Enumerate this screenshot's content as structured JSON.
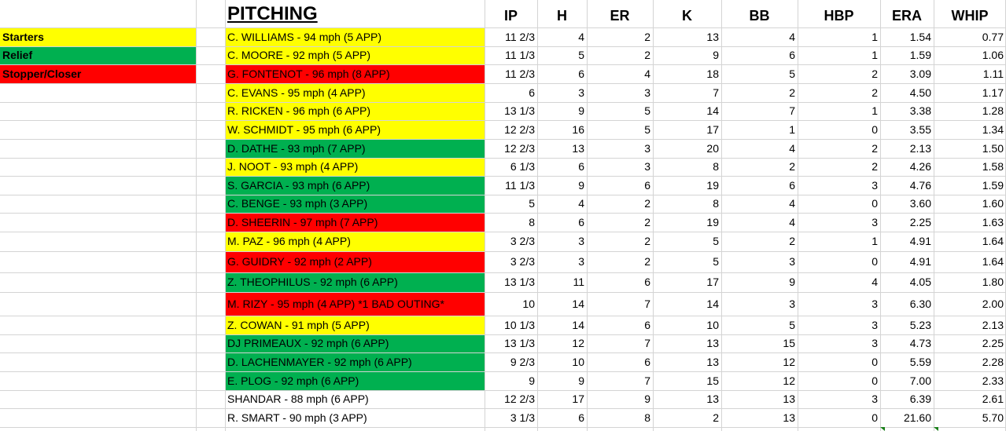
{
  "title": "PITCHING",
  "columns": [
    "IP",
    "H",
    "ER",
    "K",
    "BB",
    "HBP",
    "ERA",
    "WHIP"
  ],
  "legend": [
    {
      "label": "Starters",
      "color": "#ffff00"
    },
    {
      "label": "Relief",
      "color": "#00b050"
    },
    {
      "label": "Stopper/Closer",
      "color": "#ff0000"
    }
  ],
  "colors": {
    "starter": "#ffff00",
    "relief": "#00b050",
    "closer": "#ff0000",
    "none": "#ffffff"
  },
  "rows": [
    {
      "name": "C. WILLIAMS - 94 mph (5 APP)",
      "role": "starter",
      "ip": "11 2/3",
      "h": "4",
      "er": "2",
      "k": "13",
      "bb": "4",
      "hbp": "1",
      "era": "1.54",
      "whip": "0.77"
    },
    {
      "name": "C. MOORE - 92 mph (5 APP)",
      "role": "starter",
      "ip": "11 1/3",
      "h": "5",
      "er": "2",
      "k": "9",
      "bb": "6",
      "hbp": "1",
      "era": "1.59",
      "whip": "1.06"
    },
    {
      "name": "G. FONTENOT - 96 mph (8 APP)",
      "role": "closer",
      "ip": "11 2/3",
      "h": "6",
      "er": "4",
      "k": "18",
      "bb": "5",
      "hbp": "2",
      "era": "3.09",
      "whip": "1.11"
    },
    {
      "name": "C. EVANS - 95 mph (4 APP)",
      "role": "starter",
      "ip": "6",
      "h": "3",
      "er": "3",
      "k": "7",
      "bb": "2",
      "hbp": "2",
      "era": "4.50",
      "whip": "1.17"
    },
    {
      "name": "R. RICKEN - 96 mph (6 APP)",
      "role": "starter",
      "ip": "13 1/3",
      "h": "9",
      "er": "5",
      "k": "14",
      "bb": "7",
      "hbp": "1",
      "era": "3.38",
      "whip": "1.28"
    },
    {
      "name": "W. SCHMIDT - 95 mph (6 APP)",
      "role": "starter",
      "ip": "12 2/3",
      "h": "16",
      "er": "5",
      "k": "17",
      "bb": "1",
      "hbp": "0",
      "era": "3.55",
      "whip": "1.34"
    },
    {
      "name": "D. DATHE - 93 mph (7 APP)",
      "role": "relief",
      "ip": "12 2/3",
      "h": "13",
      "er": "3",
      "k": "20",
      "bb": "4",
      "hbp": "2",
      "era": "2.13",
      "whip": "1.50"
    },
    {
      "name": "J. NOOT - 93 mph (4 APP)",
      "role": "starter",
      "ip": "6 1/3",
      "h": "6",
      "er": "3",
      "k": "8",
      "bb": "2",
      "hbp": "2",
      "era": "4.26",
      "whip": "1.58"
    },
    {
      "name": "S. GARCIA - 93 mph (6 APP)",
      "role": "relief",
      "ip": "11 1/3",
      "h": "9",
      "er": "6",
      "k": "19",
      "bb": "6",
      "hbp": "3",
      "era": "4.76",
      "whip": "1.59"
    },
    {
      "name": "C. BENGE - 93 mph (3 APP)",
      "role": "relief",
      "ip": "5",
      "h": "4",
      "er": "2",
      "k": "8",
      "bb": "4",
      "hbp": "0",
      "era": "3.60",
      "whip": "1.60"
    },
    {
      "name": "D. SHEERIN - 97 mph (7 APP)",
      "role": "closer",
      "ip": "8",
      "h": "6",
      "er": "2",
      "k": "19",
      "bb": "4",
      "hbp": "3",
      "era": "2.25",
      "whip": "1.63"
    },
    {
      "name": "M. PAZ - 96 mph (4 APP)",
      "role": "starter",
      "ip": "3 2/3",
      "h": "3",
      "er": "2",
      "k": "5",
      "bb": "2",
      "hbp": "1",
      "era": "4.91",
      "whip": "1.64"
    },
    {
      "name": "G. GUIDRY - 92 mph (2 APP)",
      "role": "closer",
      "ip": "3 2/3",
      "h": "3",
      "er": "2",
      "k": "5",
      "bb": "3",
      "hbp": "0",
      "era": "4.91",
      "whip": "1.64"
    },
    {
      "name": "Z. THEOPHILUS - 92 mph (6 APP)",
      "role": "relief",
      "ip": "13 1/3",
      "h": "11",
      "er": "6",
      "k": "17",
      "bb": "9",
      "hbp": "4",
      "era": "4.05",
      "whip": "1.80"
    },
    {
      "name": "M. RIZY - 95 mph (4 APP) *1 BAD OUTING*",
      "role": "closer",
      "ip": "10",
      "h": "14",
      "er": "7",
      "k": "14",
      "bb": "3",
      "hbp": "3",
      "era": "6.30",
      "whip": "2.00"
    },
    {
      "name": "Z. COWAN - 91 mph (5 APP)",
      "role": "starter",
      "ip": "10 1/3",
      "h": "14",
      "er": "6",
      "k": "10",
      "bb": "5",
      "hbp": "3",
      "era": "5.23",
      "whip": "2.13"
    },
    {
      "name": "DJ PRIMEAUX - 92 mph (6 APP)",
      "role": "relief",
      "ip": "13 1/3",
      "h": "12",
      "er": "7",
      "k": "13",
      "bb": "15",
      "hbp": "3",
      "era": "4.73",
      "whip": "2.25"
    },
    {
      "name": "D. LACHENMAYER - 92 mph (6 APP)",
      "role": "relief",
      "ip": "9 2/3",
      "h": "10",
      "er": "6",
      "k": "13",
      "bb": "12",
      "hbp": "0",
      "era": "5.59",
      "whip": "2.28"
    },
    {
      "name": "E. PLOG - 92 mph (6 APP)",
      "role": "relief",
      "ip": "9",
      "h": "9",
      "er": "7",
      "k": "15",
      "bb": "12",
      "hbp": "0",
      "era": "7.00",
      "whip": "2.33"
    },
    {
      "name": "SHANDAR - 88 mph (6 APP)",
      "role": "none",
      "ip": "12 2/3",
      "h": "17",
      "er": "9",
      "k": "13",
      "bb": "13",
      "hbp": "3",
      "era": "6.39",
      "whip": "2.61"
    },
    {
      "name": "R. SMART - 90 mph (3 APP)",
      "role": "none",
      "ip": "3 1/3",
      "h": "6",
      "er": "8",
      "k": "2",
      "bb": "13",
      "hbp": "0",
      "era": "21.60",
      "whip": "5.70"
    }
  ]
}
